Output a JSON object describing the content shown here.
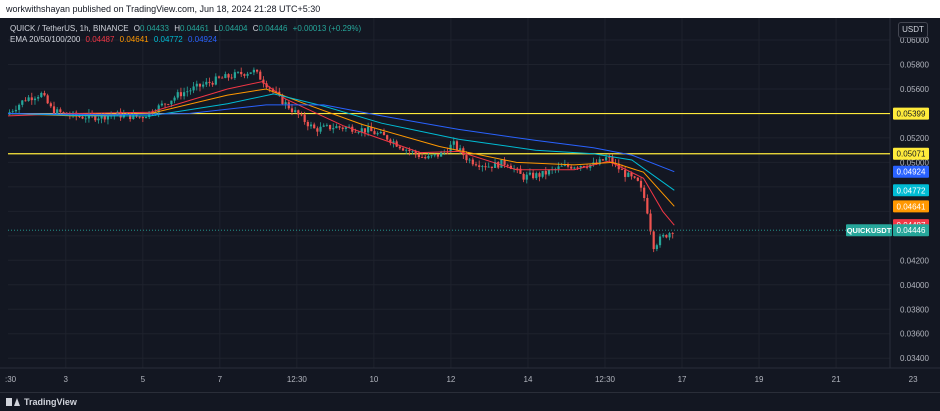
{
  "header": {
    "publisher_text": "workwithshayan published on TradingView.com, Jun 18, 2024 21:28 UTC+5:30"
  },
  "legend": {
    "symbol": "QUICK / TetherUS, 1h, BINANCE",
    "o_label": "O",
    "o_value": "0.04433",
    "h_label": "H",
    "h_value": "0.04461",
    "l_label": "L",
    "l_value": "0.04404",
    "c_label": "C",
    "c_value": "0.04446",
    "change": "+0.00013 (+0.29%)",
    "ema_label": "EMA 20/50/100/200",
    "ema20": "0.04487",
    "ema50": "0.04641",
    "ema100": "0.04772",
    "ema200": "0.04924"
  },
  "currency_button": "USDT",
  "footer": {
    "brand": "TradingView"
  },
  "colors": {
    "background": "#131722",
    "grid": "#1e222d",
    "up": "#26a69a",
    "down": "#ef5350",
    "ema20": "#f23645",
    "ema50": "#ff9800",
    "ema100": "#00bcd4",
    "ema200": "#2962ff",
    "hline": "#ffeb3b"
  },
  "chart_data": {
    "type": "candlestick",
    "x_ticks": [
      ":30",
      "3",
      "5",
      "7",
      "12:30",
      "10",
      "12",
      "14",
      "12:30",
      "17",
      "19",
      "21",
      "23"
    ],
    "x_range_days": [
      1.3,
      24.2
    ],
    "y_ticks": [
      "0.06000",
      "0.05800",
      "0.05600",
      "0.05200",
      "0.05000",
      "0.04200",
      "0.04000",
      "0.03800",
      "0.03600",
      "0.03400"
    ],
    "y_range": [
      0.0332,
      0.0618
    ],
    "horizontal_lines": [
      {
        "value": 0.05399,
        "label": "0.05399"
      },
      {
        "value": 0.05071,
        "label": "0.05071"
      }
    ],
    "price_tags": [
      {
        "label": "0.04924",
        "value": 0.04924,
        "color": "#2962ff"
      },
      {
        "label": "0.04772",
        "value": 0.04772,
        "color": "#00bcd4"
      },
      {
        "label": "0.04641",
        "value": 0.04641,
        "color": "#ff9800"
      },
      {
        "label": "0.04487",
        "value": 0.04487,
        "color": "#f23645"
      },
      {
        "label": "0.04446",
        "value": 0.04446,
        "color": "#26a69a"
      }
    ],
    "symbol_tag": "QUICKUSDT",
    "last_price": 0.04446,
    "price_path": [
      [
        1.3,
        0.0539
      ],
      [
        1.8,
        0.0552
      ],
      [
        2.2,
        0.0556
      ],
      [
        2.5,
        0.0542
      ],
      [
        3.0,
        0.0538
      ],
      [
        3.5,
        0.0537
      ],
      [
        4.2,
        0.0539
      ],
      [
        4.8,
        0.0537
      ],
      [
        5.3,
        0.0546
      ],
      [
        5.8,
        0.0556
      ],
      [
        6.3,
        0.0562
      ],
      [
        6.8,
        0.0568
      ],
      [
        7.2,
        0.0571
      ],
      [
        7.7,
        0.0575
      ],
      [
        8.0,
        0.0566
      ],
      [
        8.4,
        0.0552
      ],
      [
        8.9,
        0.0538
      ],
      [
        9.3,
        0.0527
      ],
      [
        9.8,
        0.0529
      ],
      [
        10.3,
        0.0528
      ],
      [
        10.7,
        0.0526
      ],
      [
        11.2,
        0.052
      ],
      [
        11.6,
        0.0512
      ],
      [
        12.2,
        0.0503
      ],
      [
        12.6,
        0.0507
      ],
      [
        12.9,
        0.0515
      ],
      [
        13.3,
        0.0502
      ],
      [
        13.8,
        0.0497
      ],
      [
        14.3,
        0.05
      ],
      [
        14.7,
        0.0488
      ],
      [
        15.2,
        0.049
      ],
      [
        15.7,
        0.0496
      ],
      [
        16.2,
        0.0498
      ],
      [
        16.6,
        0.0498
      ],
      [
        16.9,
        0.0504
      ],
      [
        17.3,
        0.0492
      ],
      [
        17.7,
        0.0483
      ],
      [
        17.9,
        0.0468
      ],
      [
        18.1,
        0.0432
      ],
      [
        18.3,
        0.0438
      ],
      [
        18.6,
        0.04446
      ]
    ],
    "ema_series": [
      {
        "name": "EMA 20",
        "color": "#f23645",
        "points": [
          [
            1.3,
            0.0538
          ],
          [
            3,
            0.054
          ],
          [
            5,
            0.0541
          ],
          [
            7,
            0.056
          ],
          [
            7.9,
            0.0566
          ],
          [
            8.5,
            0.0552
          ],
          [
            10,
            0.053
          ],
          [
            12,
            0.0508
          ],
          [
            13,
            0.0509
          ],
          [
            14.5,
            0.0494
          ],
          [
            16,
            0.0494
          ],
          [
            16.9,
            0.0501
          ],
          [
            17.8,
            0.0487
          ],
          [
            18.3,
            0.046
          ],
          [
            18.6,
            0.04487
          ]
        ]
      },
      {
        "name": "EMA 50",
        "color": "#ff9800",
        "points": [
          [
            1.3,
            0.054
          ],
          [
            3,
            0.0538
          ],
          [
            5,
            0.054
          ],
          [
            7,
            0.0555
          ],
          [
            8,
            0.056
          ],
          [
            9,
            0.0548
          ],
          [
            10.5,
            0.0531
          ],
          [
            12.5,
            0.0513
          ],
          [
            14.5,
            0.05
          ],
          [
            16,
            0.0498
          ],
          [
            17,
            0.05
          ],
          [
            17.8,
            0.0492
          ],
          [
            18.6,
            0.04641
          ]
        ]
      },
      {
        "name": "EMA 100",
        "color": "#00bcd4",
        "points": [
          [
            1.3,
            0.054
          ],
          [
            3.5,
            0.0538
          ],
          [
            5,
            0.0538
          ],
          [
            7,
            0.0548
          ],
          [
            8.2,
            0.0556
          ],
          [
            9.5,
            0.0546
          ],
          [
            11,
            0.0532
          ],
          [
            13,
            0.0519
          ],
          [
            15,
            0.051
          ],
          [
            16.5,
            0.0507
          ],
          [
            17.5,
            0.0502
          ],
          [
            18.6,
            0.04772
          ]
        ]
      },
      {
        "name": "EMA 200",
        "color": "#2962ff",
        "points": [
          [
            1.3,
            0.054
          ],
          [
            4,
            0.0539
          ],
          [
            6,
            0.054
          ],
          [
            8,
            0.0547
          ],
          [
            9.5,
            0.0547
          ],
          [
            11,
            0.0538
          ],
          [
            13,
            0.0527
          ],
          [
            15,
            0.0518
          ],
          [
            16.5,
            0.0512
          ],
          [
            17.5,
            0.0506
          ],
          [
            18.6,
            0.04924
          ]
        ]
      }
    ]
  }
}
